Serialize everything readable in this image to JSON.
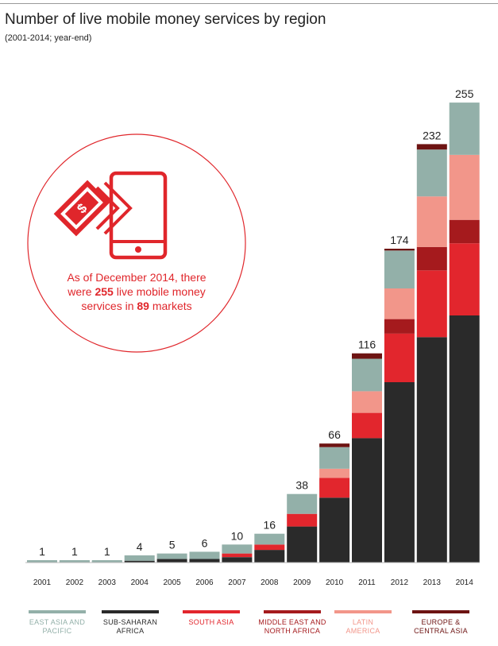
{
  "header": {
    "title": "Number of live mobile money services by region",
    "subtitle": "(2001-2014; year-end)"
  },
  "callout": {
    "line1": "As of December 2014, there",
    "line2_pre": "were ",
    "services": "255",
    "line2_post": " live mobile money",
    "line3_pre": "services in ",
    "markets": "89",
    "line3_post": " markets",
    "icon": "mobile-money-icon"
  },
  "colors": {
    "east_asia_pacific": "#93b0a9",
    "sub_saharan_africa": "#2a2a2a",
    "south_asia": "#e2262d",
    "mena": "#a51a1d",
    "latin_america": "#f2968a",
    "europe_central_asia": "#6d1312",
    "accent": "#e0262b"
  },
  "chart_data": {
    "type": "bar",
    "stacked": true,
    "title": "Number of live mobile money services by region",
    "subtitle": "(2001-2014; year-end)",
    "categories": [
      "2001",
      "2002",
      "2003",
      "2004",
      "2005",
      "2006",
      "2007",
      "2008",
      "2009",
      "2010",
      "2011",
      "2012",
      "2013",
      "2014"
    ],
    "totals": [
      1,
      1,
      1,
      4,
      5,
      6,
      10,
      16,
      38,
      66,
      116,
      174,
      232,
      255
    ],
    "legend_position": "bottom",
    "grid": false,
    "ylim": [
      0,
      260
    ],
    "series": [
      {
        "key": "sub_saharan_africa",
        "name": "SUB-SAHARAN AFRICA",
        "values": [
          0,
          0,
          0,
          1,
          2,
          2,
          3,
          7,
          20,
          36,
          69,
          100,
          125,
          137
        ]
      },
      {
        "key": "south_asia",
        "name": "SOUTH ASIA",
        "values": [
          0,
          0,
          0,
          0,
          0,
          0,
          2,
          3,
          7,
          11,
          14,
          27,
          37,
          40
        ]
      },
      {
        "key": "mena",
        "name": "MIDDLE EAST AND NORTH AFRICA",
        "values": [
          0,
          0,
          0,
          0,
          0,
          0,
          0,
          0,
          0,
          0,
          0,
          8,
          13,
          13
        ]
      },
      {
        "key": "latin_america",
        "name": "LATIN AMERICA",
        "values": [
          0,
          0,
          0,
          0,
          0,
          0,
          0,
          0,
          0,
          5,
          12,
          17,
          28,
          36
        ]
      },
      {
        "key": "east_asia_pacific",
        "name": "EAST ASIA AND PACIFIC",
        "values": [
          1,
          1,
          1,
          3,
          3,
          4,
          5,
          6,
          11,
          12,
          18,
          21,
          26,
          29
        ]
      },
      {
        "key": "europe_central_asia",
        "name": "EUROPE & CENTRAL ASIA",
        "values": [
          0,
          0,
          0,
          0,
          0,
          0,
          0,
          0,
          0,
          2,
          3,
          1,
          3,
          0
        ]
      }
    ]
  },
  "legend": [
    {
      "key": "east_asia_pacific",
      "line1": "EAST ASIA AND",
      "line2": "PACIFIC"
    },
    {
      "key": "sub_saharan_africa",
      "line1": "SUB-SAHARAN",
      "line2": "AFRICA"
    },
    {
      "key": "south_asia",
      "line1": "SOUTH ASIA",
      "line2": ""
    },
    {
      "key": "mena",
      "line1": "MIDDLE EAST AND",
      "line2": "NORTH AFRICA"
    },
    {
      "key": "latin_america",
      "line1": "LATIN",
      "line2": "AMERICA"
    },
    {
      "key": "europe_central_asia",
      "line1": "EUROPE &",
      "line2": "CENTRAL ASIA"
    }
  ]
}
